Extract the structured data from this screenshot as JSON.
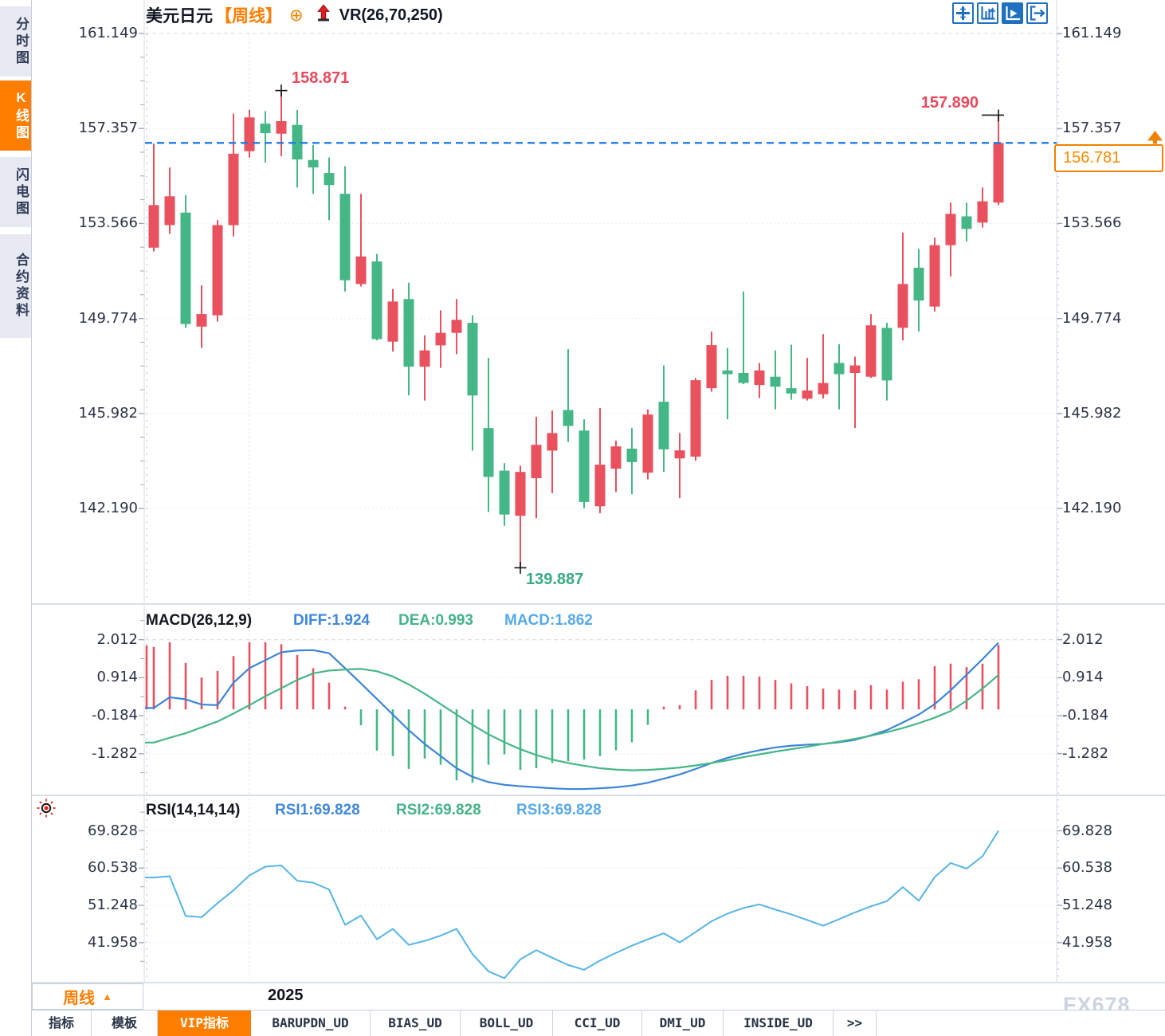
{
  "header": {
    "symbol": "美元日元",
    "period": "【周线】",
    "plus_icon": "⊕",
    "arrow_icon": "up-arrow-icon",
    "indicator": "VR(26,70,250)"
  },
  "sidebar": {
    "items": [
      {
        "label": "分时图",
        "active": false
      },
      {
        "label": "K线图",
        "active": true
      },
      {
        "label": "闪电图",
        "active": false
      },
      {
        "label": "合约资料",
        "active": false
      }
    ]
  },
  "toolbar": {
    "icons": [
      "pan-crosshair-icon",
      "axis-bars-icon",
      "axis-play-icon",
      "pane-exit-icon"
    ],
    "active_index": 2
  },
  "main_chart": {
    "y_axis_labels": [
      "161.149",
      "157.357",
      "153.566",
      "149.774",
      "145.982",
      "142.190"
    ],
    "annotations": {
      "swing_high": "158.871",
      "recent_high": "157.890",
      "swing_low": "139.887",
      "current_price": "156.781"
    }
  },
  "macd_panel": {
    "title": "MACD(26,12,9)",
    "diff_label": "DIFF:1.924",
    "dea_label": "DEA:0.993",
    "macd_label": "MACD:1.862",
    "y_axis_labels": [
      "2.012",
      "0.914",
      "-0.184",
      "-1.282"
    ],
    "settings_icon": "brightness-icon"
  },
  "rsi_panel": {
    "title": "RSI(14,14,14)",
    "rsi1_label": "RSI1:69.828",
    "rsi2_label": "RSI2:69.828",
    "rsi3_label": "RSI3:69.828",
    "y_axis_labels": [
      "69.828",
      "60.538",
      "51.248",
      "41.958"
    ]
  },
  "bottom_bar": {
    "period_button": "周线",
    "period_arrow": "▲",
    "year_label": "2025",
    "watermark": "FX678",
    "tabs": [
      {
        "label": "指标",
        "active": false
      },
      {
        "label": "模板",
        "active": false
      },
      {
        "label": "VIP指标",
        "active": true
      },
      {
        "label": "BARUPDN_UD",
        "active": false
      },
      {
        "label": "BIAS_UD",
        "active": false
      },
      {
        "label": "BOLL_UD",
        "active": false
      },
      {
        "label": "CCI_UD",
        "active": false
      },
      {
        "label": "DMI_UD",
        "active": false
      },
      {
        "label": "INSIDE_UD",
        "active": false
      },
      {
        "label": ">>",
        "active": false
      }
    ]
  },
  "colors": {
    "up": "#e9515f",
    "down": "#45b787",
    "diff_line": "#3c85d6",
    "dea_line": "#45b787",
    "rsi_line": "#55b5e5",
    "price_line": "#1b7ce8",
    "accent_orange": "#ff7e00",
    "axis_text": "#2b3448",
    "marker_red": "#e8495c",
    "marker_green": "#35ab80",
    "icon_blue": "#2070c0",
    "watermark": "#cdd3e0"
  },
  "chart_data": [
    {
      "type": "candlestick",
      "title": "美元日元 周线 (USD/JPY weekly)",
      "x_gridline": {
        "index": 7,
        "label": "2025"
      },
      "y_ticks": [
        161.149,
        157.357,
        153.566,
        149.774,
        145.982,
        142.19
      ],
      "current_price": 156.781,
      "marked_high": {
        "index": 8,
        "value": 158.871
      },
      "marked_recent_high": {
        "index": 53,
        "value": 157.89
      },
      "marked_low": {
        "index": 23,
        "value": 139.887
      },
      "candles_ohlc": [
        [
          152.6,
          156.75,
          152.45,
          154.3
        ],
        [
          153.5,
          155.8,
          153.15,
          154.65
        ],
        [
          154.0,
          154.7,
          149.4,
          149.55
        ],
        [
          149.45,
          151.1,
          148.6,
          149.95
        ],
        [
          149.9,
          153.7,
          149.65,
          153.5
        ],
        [
          153.5,
          157.95,
          153.05,
          156.35
        ],
        [
          156.45,
          158.1,
          156.2,
          157.8
        ],
        [
          157.55,
          158.05,
          156.0,
          157.17
        ],
        [
          157.15,
          158.871,
          156.25,
          157.65
        ],
        [
          157.5,
          158.1,
          155.0,
          156.12
        ],
        [
          156.1,
          156.7,
          154.75,
          155.8
        ],
        [
          155.58,
          156.2,
          153.7,
          155.1
        ],
        [
          154.75,
          155.85,
          150.85,
          151.3
        ],
        [
          151.15,
          154.75,
          151.05,
          152.25
        ],
        [
          152.05,
          152.35,
          148.9,
          148.95
        ],
        [
          148.85,
          150.95,
          148.45,
          150.45
        ],
        [
          150.55,
          151.2,
          146.7,
          147.85
        ],
        [
          147.85,
          149.1,
          146.5,
          148.5
        ],
        [
          148.7,
          150.1,
          147.8,
          149.2
        ],
        [
          149.2,
          150.55,
          148.35,
          149.72
        ],
        [
          149.6,
          149.9,
          144.5,
          146.7
        ],
        [
          145.4,
          148.2,
          142.05,
          143.45
        ],
        [
          143.7,
          144.0,
          141.5,
          141.95
        ],
        [
          141.9,
          143.9,
          139.887,
          143.65
        ],
        [
          143.4,
          145.85,
          141.8,
          144.73
        ],
        [
          144.5,
          146.1,
          142.8,
          145.2
        ],
        [
          146.12,
          148.55,
          144.85,
          145.48
        ],
        [
          145.3,
          145.75,
          142.2,
          142.45
        ],
        [
          142.28,
          146.2,
          142.0,
          143.94
        ],
        [
          143.78,
          144.9,
          142.85,
          144.67
        ],
        [
          144.58,
          145.4,
          142.76,
          144.04
        ],
        [
          143.62,
          146.15,
          143.35,
          145.94
        ],
        [
          146.45,
          147.9,
          143.65,
          144.55
        ],
        [
          144.19,
          145.2,
          142.6,
          144.51
        ],
        [
          144.26,
          147.4,
          144.1,
          147.31
        ],
        [
          146.99,
          149.25,
          146.85,
          148.71
        ],
        [
          147.7,
          148.6,
          145.75,
          147.55
        ],
        [
          147.6,
          150.85,
          147.15,
          147.2
        ],
        [
          147.12,
          148.0,
          146.6,
          147.7
        ],
        [
          147.45,
          148.5,
          146.15,
          147.05
        ],
        [
          146.99,
          148.73,
          146.53,
          146.78
        ],
        [
          146.57,
          148.2,
          146.5,
          146.9
        ],
        [
          146.75,
          149.15,
          146.58,
          147.2
        ],
        [
          148.0,
          148.75,
          146.15,
          147.55
        ],
        [
          147.6,
          148.25,
          145.4,
          147.9
        ],
        [
          147.45,
          149.95,
          147.4,
          149.5
        ],
        [
          149.4,
          149.6,
          146.5,
          147.3
        ],
        [
          149.4,
          153.2,
          148.9,
          151.15
        ],
        [
          151.8,
          152.55,
          149.25,
          150.49
        ],
        [
          150.25,
          153.0,
          150.05,
          152.7
        ],
        [
          152.7,
          154.4,
          151.45,
          153.95
        ],
        [
          153.85,
          154.4,
          152.85,
          153.35
        ],
        [
          153.6,
          155.0,
          153.4,
          154.45
        ],
        [
          154.4,
          157.89,
          154.3,
          156.781
        ]
      ]
    },
    {
      "type": "bar+line",
      "name": "MACD(26,12,9)",
      "y_ticks": [
        2.012,
        0.914,
        -0.184,
        -1.282
      ],
      "histogram": [
        1.8,
        1.94,
        1.34,
        0.92,
        1.11,
        1.54,
        1.94,
        1.94,
        1.88,
        1.57,
        1.19,
        0.77,
        0.08,
        -0.46,
        -1.19,
        -1.35,
        -1.72,
        -1.42,
        -1.6,
        -2.05,
        -2.12,
        -1.6,
        -1.3,
        -1.75,
        -1.7,
        -1.55,
        -1.5,
        -1.45,
        -1.35,
        -1.18,
        -0.95,
        -0.45,
        0.08,
        0.12,
        0.55,
        0.85,
        0.97,
        0.97,
        0.95,
        0.85,
        0.75,
        0.67,
        0.6,
        0.57,
        0.55,
        0.7,
        0.57,
        0.8,
        0.87,
        1.25,
        1.32,
        1.22,
        1.32,
        1.862
      ],
      "series": [
        {
          "name": "DIFF",
          "color": "#3c85d6",
          "values": [
            0.04,
            0.35,
            0.29,
            0.14,
            0.12,
            0.77,
            1.19,
            1.42,
            1.65,
            1.7,
            1.71,
            1.62,
            1.19,
            0.75,
            0.3,
            -0.15,
            -0.6,
            -1.0,
            -1.35,
            -1.7,
            -1.95,
            -2.1,
            -2.18,
            -2.22,
            -2.25,
            -2.28,
            -2.3,
            -2.3,
            -2.28,
            -2.25,
            -2.2,
            -2.12,
            -2.0,
            -1.88,
            -1.72,
            -1.55,
            -1.4,
            -1.28,
            -1.18,
            -1.1,
            -1.05,
            -1.02,
            -1.0,
            -0.95,
            -0.88,
            -0.75,
            -0.6,
            -0.38,
            -0.15,
            0.15,
            0.55,
            1.0,
            1.45,
            1.924
          ]
        },
        {
          "name": "DEA",
          "color": "#45b787",
          "values": [
            -0.96,
            -0.82,
            -0.69,
            -0.52,
            -0.35,
            -0.12,
            0.12,
            0.38,
            0.61,
            0.85,
            1.04,
            1.12,
            1.15,
            1.17,
            1.1,
            0.95,
            0.72,
            0.45,
            0.15,
            -0.15,
            -0.45,
            -0.72,
            -0.95,
            -1.15,
            -1.32,
            -1.45,
            -1.55,
            -1.63,
            -1.7,
            -1.74,
            -1.76,
            -1.75,
            -1.72,
            -1.68,
            -1.62,
            -1.55,
            -1.47,
            -1.38,
            -1.3,
            -1.22,
            -1.15,
            -1.08,
            -1.0,
            -0.93,
            -0.85,
            -0.76,
            -0.66,
            -0.54,
            -0.4,
            -0.24,
            -0.05,
            0.25,
            0.6,
            0.993
          ]
        }
      ]
    },
    {
      "type": "line",
      "name": "RSI(14,14,14)",
      "note": "RSI1/RSI2/RSI3 overlap identically",
      "y_ticks": [
        69.828,
        60.538,
        51.248,
        41.958
      ],
      "series": [
        {
          "name": "RSI1",
          "color": "#55b5e5",
          "values": [
            58.2,
            58.5,
            48.6,
            48.3,
            51.8,
            55.0,
            58.7,
            60.9,
            61.2,
            57.4,
            56.9,
            55.2,
            46.4,
            48.7,
            42.8,
            45.4,
            41.4,
            42.4,
            43.7,
            45.4,
            39.1,
            34.8,
            33.1,
            37.8,
            40.1,
            38.2,
            36.4,
            35.2,
            37.5,
            39.4,
            41.2,
            42.8,
            44.3,
            42.0,
            44.6,
            47.3,
            49.2,
            50.6,
            51.5,
            50.2,
            49.0,
            47.6,
            46.2,
            47.8,
            49.5,
            51.0,
            52.3,
            55.8,
            52.4,
            58.3,
            61.8,
            60.4,
            63.5,
            69.828
          ]
        }
      ]
    }
  ]
}
